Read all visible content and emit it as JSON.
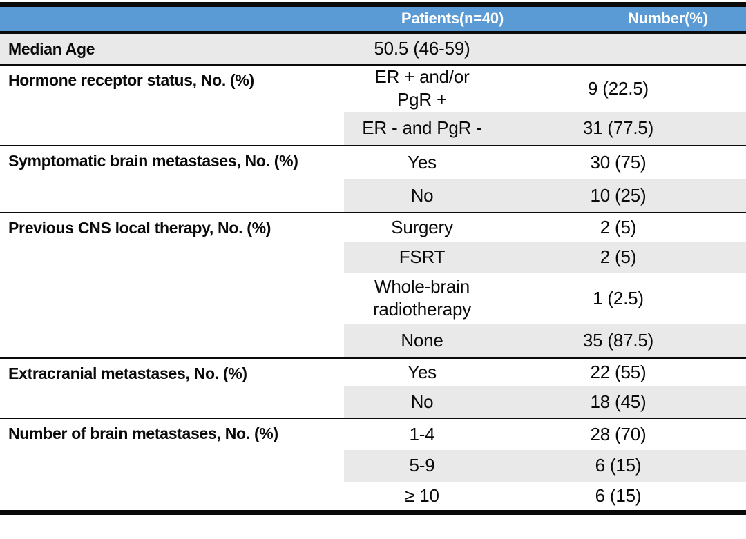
{
  "colors": {
    "header_bg": "#5B9BD5",
    "header_text": "#FFFFFF",
    "band_gray": "#E9E9E9",
    "rule_black": "#0A0A0A"
  },
  "table": {
    "header": {
      "patients": "Patients(n=40)",
      "number": "Number(%)"
    },
    "rows": [
      {
        "label": "Median Age",
        "patients": "50.5 (46-59)",
        "number": ""
      },
      {
        "label": "Hormone receptor status, No. (%)",
        "patients": "ER + and/or\nPgR +",
        "number": "9 (22.5)"
      },
      {
        "patients": "ER - and PgR -",
        "number": "31 (77.5)"
      },
      {
        "label": "Symptomatic brain metastases, No. (%)",
        "patients": "Yes",
        "number": "30 (75)"
      },
      {
        "patients": "No",
        "number": "10 (25)"
      },
      {
        "label": "Previous CNS local therapy, No. (%)",
        "patients": "Surgery",
        "number": "2 (5)"
      },
      {
        "patients": "FSRT",
        "number": "2 (5)"
      },
      {
        "patients": "Whole-brain\nradiotherapy",
        "number": "1 (2.5)"
      },
      {
        "patients": "None",
        "number": "35 (87.5)"
      },
      {
        "label": "Extracranial metastases, No. (%)",
        "patients": "Yes",
        "number": "22 (55)"
      },
      {
        "patients": "No",
        "number": "18 (45)"
      },
      {
        "label": "Number of brain metastases, No. (%)",
        "patients": "1-4",
        "number": "28 (70)"
      },
      {
        "patients": "5-9",
        "number": "6 (15)"
      },
      {
        "patients": "≥ 10",
        "number": "6 (15)"
      }
    ]
  }
}
